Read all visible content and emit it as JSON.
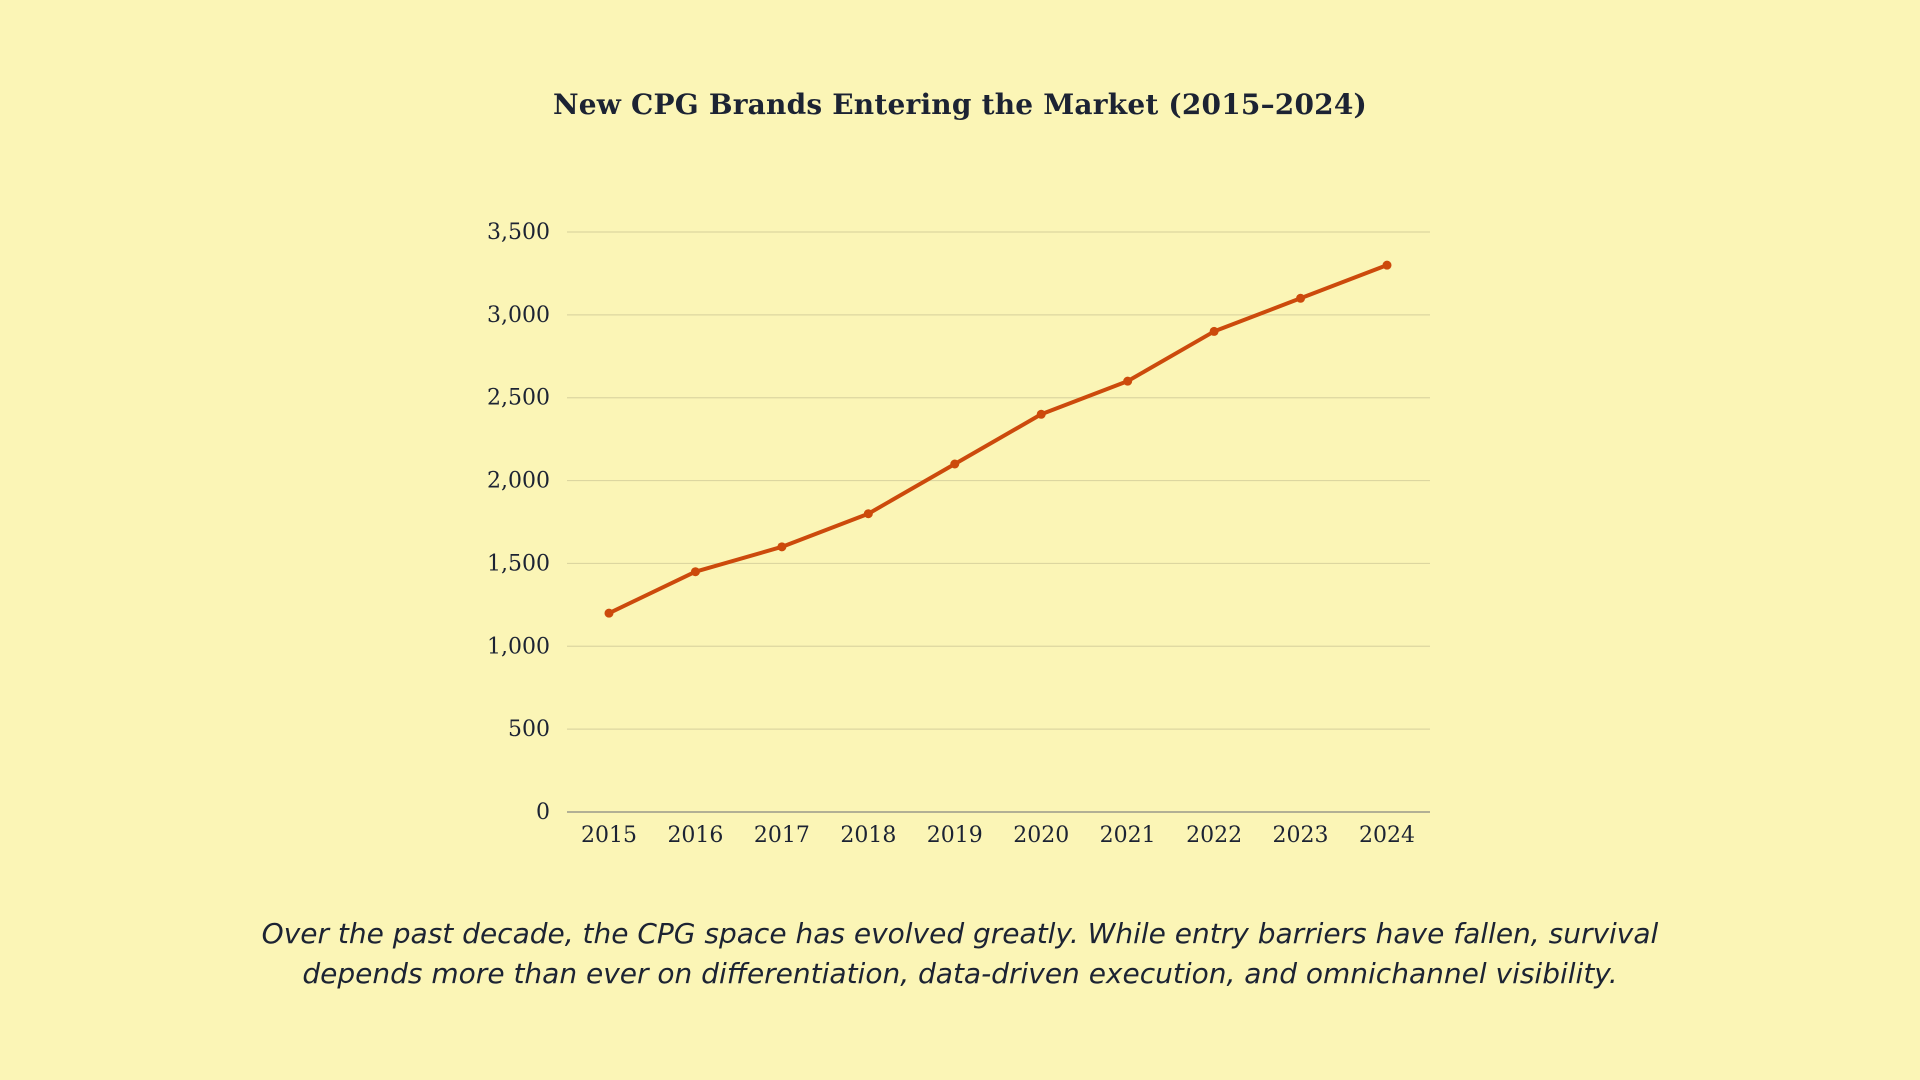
{
  "chart_data": {
    "type": "line",
    "title": "New CPG Brands Entering the Market (2015–2024)",
    "xlabel": "",
    "ylabel": "",
    "categories": [
      "2015",
      "2016",
      "2017",
      "2018",
      "2019",
      "2020",
      "2021",
      "2022",
      "2023",
      "2024"
    ],
    "series": [
      {
        "name": "New CPG Brands",
        "values": [
          1200,
          1450,
          1600,
          1800,
          2100,
          2400,
          2600,
          2900,
          3100,
          3300
        ]
      }
    ],
    "ylim": [
      0,
      3500
    ],
    "yticks": [
      0,
      500,
      1000,
      1500,
      2000,
      2500,
      3000,
      3500
    ],
    "ytick_labels": [
      "0",
      "500",
      "1,000",
      "1,500",
      "2,000",
      "2,500",
      "3,000",
      "3,500"
    ],
    "grid": true,
    "legend": "none"
  },
  "caption": "Over the past decade, the CPG space has evolved greatly. While entry barriers have fallen, survival depends more than ever on differentiation, data-driven execution, and omnichannel visibility.",
  "colors": {
    "background": "#fbf5b6",
    "line": "#cc4a0c",
    "text": "#1c2333",
    "grid": "#dcd6a0",
    "axis": "#9a9a8a"
  }
}
